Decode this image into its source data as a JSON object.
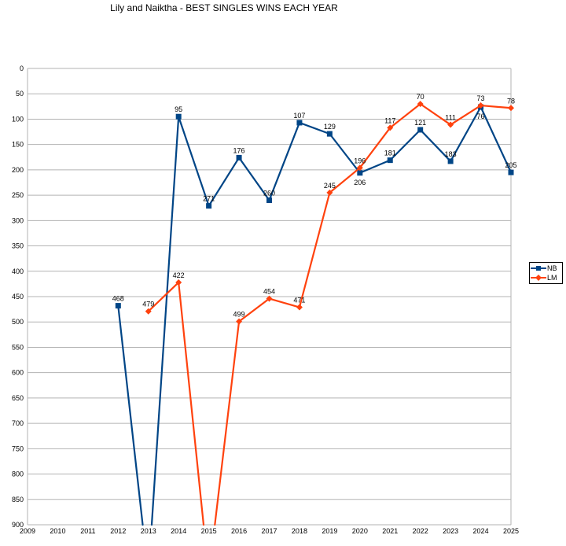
{
  "chart_data": {
    "type": "line",
    "title": "Lily and Naiktha - BEST SINGLES WINS EACH YEAR",
    "xlabel": "",
    "ylabel": "",
    "x": [
      2009,
      2010,
      2011,
      2012,
      2013,
      2014,
      2015,
      2016,
      2017,
      2018,
      2019,
      2020,
      2021,
      2022,
      2023,
      2024,
      2025
    ],
    "ylim": [
      0,
      900
    ],
    "y_inverted": true,
    "y_ticks": [
      0,
      50,
      100,
      150,
      200,
      250,
      300,
      350,
      400,
      450,
      500,
      550,
      600,
      650,
      700,
      750,
      800,
      850,
      900
    ],
    "grid": true,
    "legend_position": "right",
    "series": [
      {
        "name": "NB",
        "color": "#004586",
        "marker": "square",
        "values": [
          null,
          null,
          null,
          468,
          1000,
          95,
          271,
          176,
          260,
          107,
          129,
          206,
          181,
          121,
          183,
          76,
          205
        ],
        "labels": [
          null,
          null,
          null,
          "468",
          null,
          "95",
          "271",
          "176",
          "260",
          "107",
          "129",
          "206",
          "181",
          "121",
          "183",
          "76",
          "205"
        ]
      },
      {
        "name": "LM",
        "color": "#ff420e",
        "marker": "diamond",
        "values": [
          null,
          null,
          null,
          null,
          479,
          422,
          1000,
          499,
          454,
          471,
          245,
          196,
          117,
          70,
          111,
          73,
          78
        ],
        "labels": [
          null,
          null,
          null,
          null,
          "479",
          "422",
          null,
          "499",
          "454",
          "471",
          "245",
          "196",
          "117",
          "70",
          "111",
          "73",
          "78"
        ]
      }
    ]
  }
}
